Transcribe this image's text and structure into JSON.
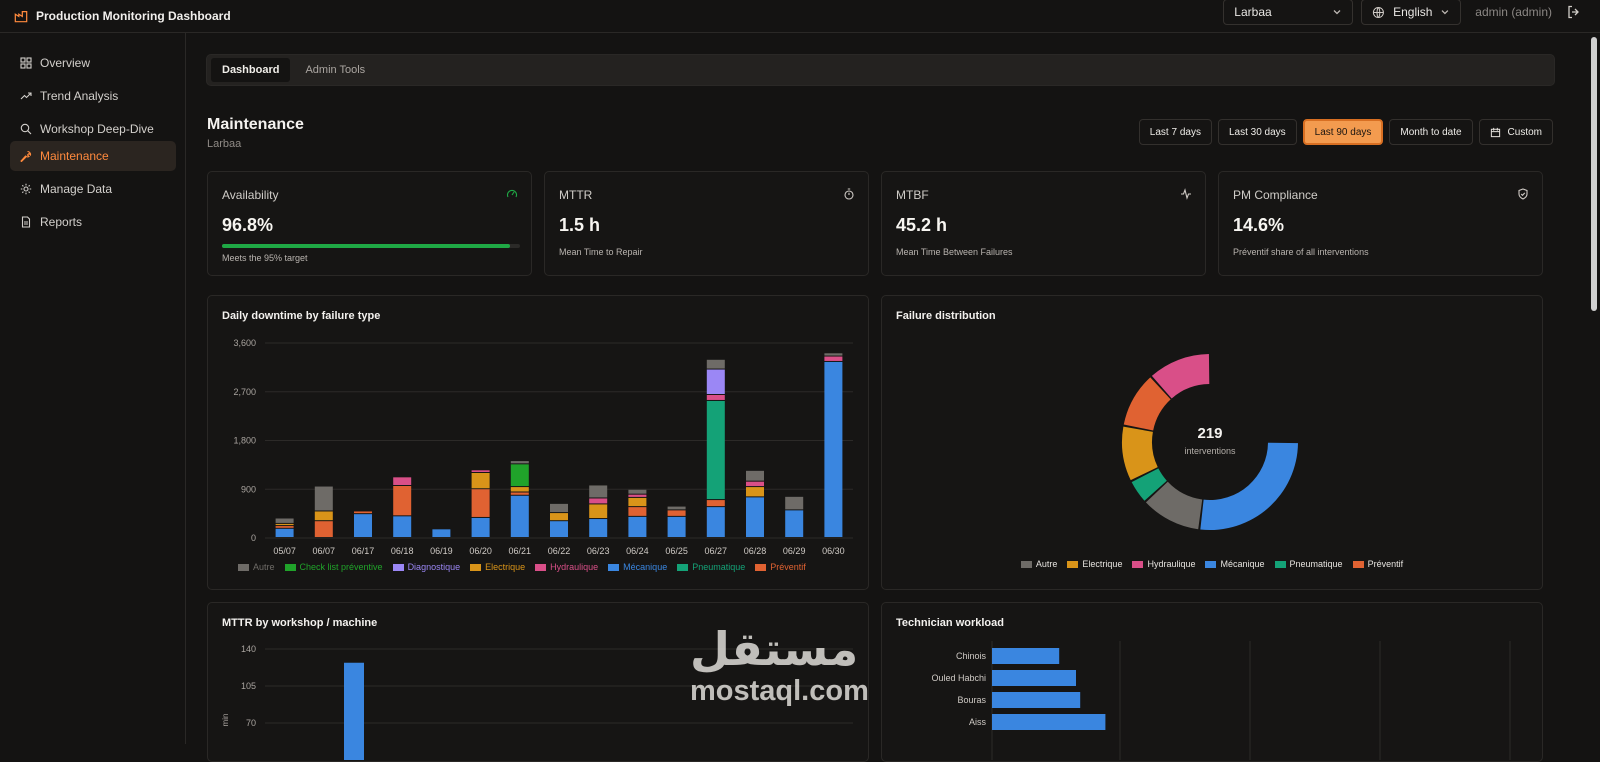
{
  "app": {
    "title": "Production Monitoring Dashboard"
  },
  "header": {
    "location": "Larbaa",
    "language": "English",
    "user": "admin (admin)"
  },
  "sidebar": {
    "items": [
      {
        "label": "Overview",
        "icon": "grid-icon"
      },
      {
        "label": "Trend Analysis",
        "icon": "trend-icon"
      },
      {
        "label": "Workshop Deep-Dive",
        "icon": "search-icon"
      },
      {
        "label": "Maintenance",
        "icon": "wrench-icon",
        "active": true
      },
      {
        "label": "Manage Data",
        "icon": "gear-icon"
      },
      {
        "label": "Reports",
        "icon": "file-icon"
      }
    ]
  },
  "tabs": [
    {
      "label": "Dashboard",
      "active": true
    },
    {
      "label": "Admin Tools"
    }
  ],
  "page": {
    "title": "Maintenance",
    "subtitle": "Larbaa"
  },
  "ranges": [
    {
      "label": "Last 7 days"
    },
    {
      "label": "Last 30 days"
    },
    {
      "label": "Last 90 days",
      "active": true
    },
    {
      "label": "Month to date"
    },
    {
      "label": "Custom",
      "icon": "calendar-icon"
    }
  ],
  "kpis": [
    {
      "label": "Availability",
      "value": "96.8%",
      "note": "Meets the 95% target",
      "progress": 0.968,
      "icon": "gauge-icon",
      "icon_color": "#1fa845"
    },
    {
      "label": "MTTR",
      "value": "1.5 h",
      "note": "Mean Time to Repair",
      "icon": "stopwatch-icon"
    },
    {
      "label": "MTBF",
      "value": "45.2 h",
      "note": "Mean Time Between Failures",
      "icon": "pulse-icon"
    },
    {
      "label": "PM Compliance",
      "value": "14.6%",
      "note": "Préventif share of all interventions",
      "icon": "shield-check-icon"
    }
  ],
  "colors": {
    "Autre": "#6e6b67",
    "Check list préventive": "#20a32a",
    "Diagnostique": "#9b87f5",
    "Electrique": "#d99419",
    "Hydraulique": "#d94f88",
    "Mécanique": "#3a86e0",
    "Pneumatique": "#14a277",
    "Préventif": "#e06232"
  },
  "chart_data": [
    {
      "title": "Daily downtime by failure type",
      "type": "bar",
      "stacked": true,
      "categories": [
        "05/07",
        "06/07",
        "06/17",
        "06/18",
        "06/19",
        "06/20",
        "06/21",
        "06/22",
        "06/23",
        "06/24",
        "06/25",
        "06/27",
        "06/28",
        "06/29",
        "06/30"
      ],
      "ylim": [
        0,
        3600
      ],
      "yticks": [
        0,
        900,
        1800,
        2700,
        3600
      ],
      "ytick_labels": [
        "0",
        "900",
        "1,800",
        "2,700",
        "3,600"
      ],
      "legend_position": "bottom",
      "series": [
        {
          "name": "Mécanique",
          "values": [
            170,
            0,
            440,
            400,
            160,
            370,
            780,
            310,
            350,
            390,
            390,
            570,
            750,
            510,
            3250
          ]
        },
        {
          "name": "Préventif",
          "values": [
            50,
            310,
            50,
            560,
            0,
            530,
            60,
            0,
            0,
            180,
            120,
            130,
            0,
            0,
            0
          ]
        },
        {
          "name": "Electrique",
          "values": [
            40,
            180,
            0,
            0,
            0,
            300,
            100,
            150,
            270,
            170,
            0,
            0,
            190,
            0,
            0
          ]
        },
        {
          "name": "Check list préventive",
          "values": [
            0,
            0,
            0,
            0,
            0,
            0,
            420,
            0,
            0,
            0,
            0,
            0,
            0,
            0,
            0
          ]
        },
        {
          "name": "Pneumatique",
          "values": [
            0,
            0,
            0,
            0,
            0,
            0,
            0,
            0,
            0,
            0,
            0,
            1830,
            0,
            0,
            0
          ]
        },
        {
          "name": "Hydraulique",
          "values": [
            0,
            0,
            0,
            160,
            0,
            50,
            0,
            0,
            110,
            60,
            0,
            110,
            100,
            0,
            100
          ]
        },
        {
          "name": "Diagnostique",
          "values": [
            0,
            0,
            0,
            0,
            0,
            0,
            0,
            0,
            0,
            0,
            0,
            470,
            0,
            0,
            0
          ]
        },
        {
          "name": "Autre",
          "values": [
            100,
            460,
            0,
            0,
            0,
            0,
            60,
            170,
            240,
            90,
            70,
            180,
            200,
            250,
            60
          ]
        }
      ]
    },
    {
      "title": "Failure distribution",
      "type": "pie",
      "donut": true,
      "center_value": "219",
      "center_label": "interventions",
      "legend_position": "bottom",
      "slices": [
        {
          "name": "Mécanique",
          "value": 60
        },
        {
          "name": "Autre",
          "value": 25
        },
        {
          "name": "Pneumatique",
          "value": 10
        },
        {
          "name": "Electrique",
          "value": 23
        },
        {
          "name": "Préventif",
          "value": 23
        },
        {
          "name": "Hydraulique",
          "value": 26
        }
      ]
    },
    {
      "title": "MTTR by workshop / machine",
      "type": "bar",
      "ylabel": "min",
      "ylim": [
        70,
        140
      ],
      "yticks": [
        70,
        105,
        140
      ],
      "values": [
        127
      ]
    },
    {
      "title": "Technician workload",
      "type": "bar",
      "orientation": "horizontal",
      "categories": [
        "Chinois",
        "Ouled Habchi",
        "Bouras",
        "Aiss"
      ],
      "values": [
        16,
        20,
        21,
        27
      ]
    }
  ],
  "watermark": {
    "arabic": "مستقل",
    "latin": "mostaql.com"
  }
}
